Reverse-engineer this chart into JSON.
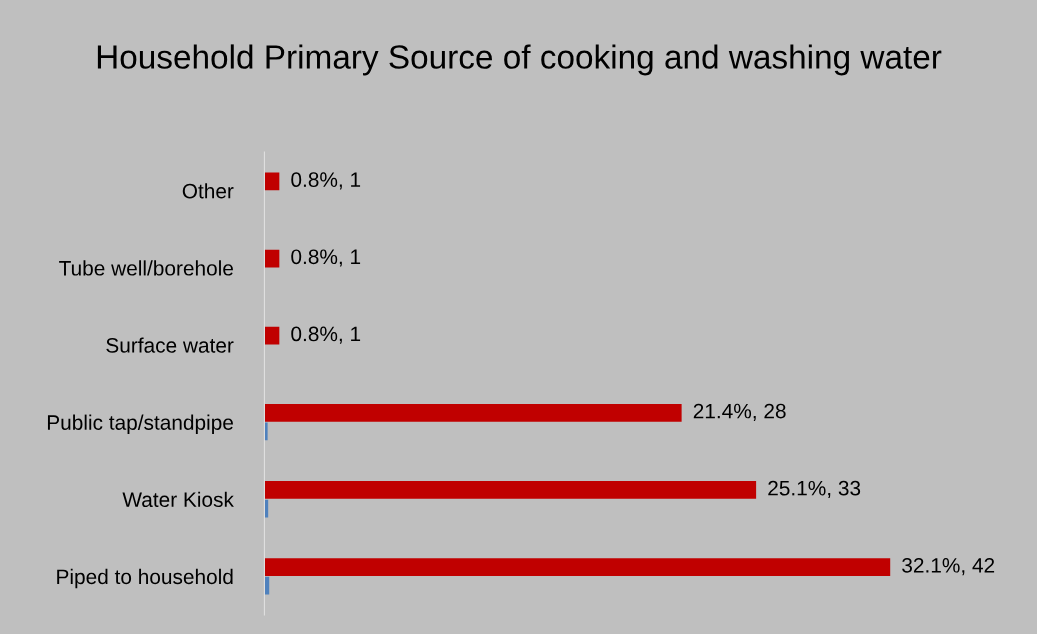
{
  "chart_data": {
    "type": "bar",
    "orientation": "horizontal",
    "tick_labels": "y",
    "title": "Household Primary Source of cooking and washing water",
    "categories": [
      "Other",
      "Tube well/borehole",
      "Surface water",
      "Public tap/standpipe",
      "Water Kiosk",
      "Piped to household"
    ],
    "series": [
      {
        "color": "#c00000",
        "values": [
          1,
          1,
          1,
          28,
          33,
          42
        ],
        "value_labels": [
          "0.8%, 1",
          "0.8%, 1",
          "0.8%, 1",
          "21.4%, 28",
          "25.1%, 33",
          "32.1%, 42"
        ]
      },
      {
        "color": "#4f81bd",
        "values": [
          null,
          null,
          null,
          0.214,
          0.251,
          0.321
        ]
      }
    ],
    "grid": false,
    "legend": false
  }
}
